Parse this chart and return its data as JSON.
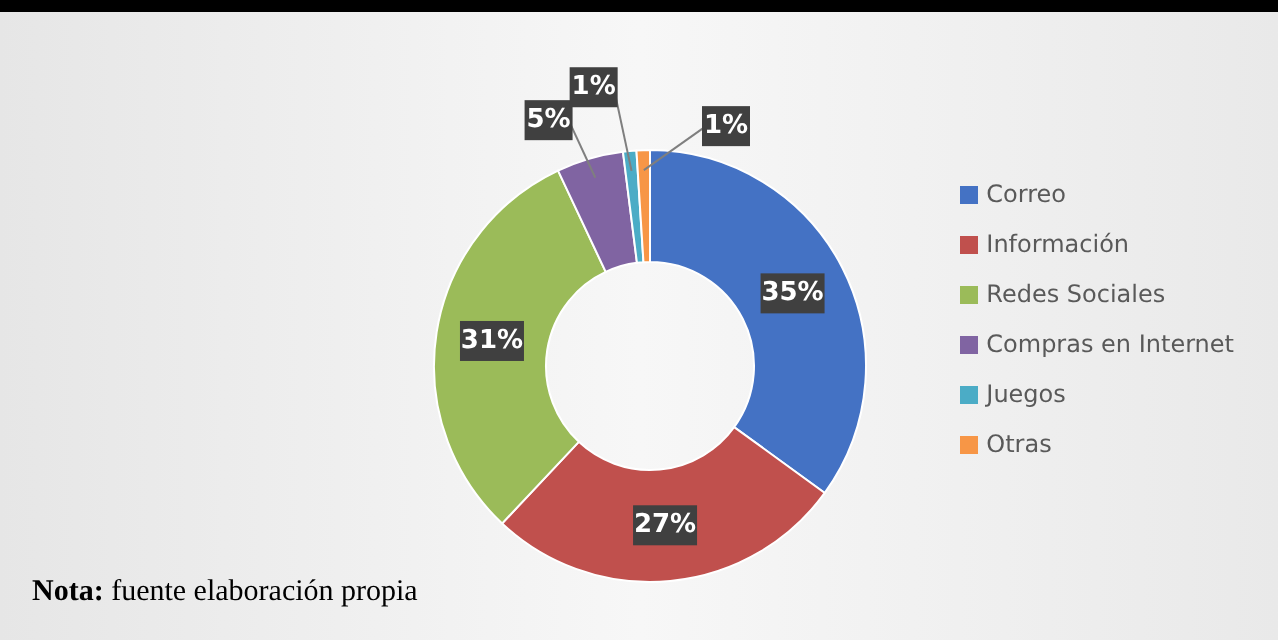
{
  "chart_data": {
    "type": "donut",
    "categories": [
      "Correo",
      "Información",
      "Redes Sociales",
      "Compras en Internet",
      "Juegos",
      "Otras"
    ],
    "values": [
      35,
      27,
      31,
      5,
      1,
      1
    ],
    "colors": [
      "#4472c4",
      "#c0504d",
      "#9bbb59",
      "#8064a2",
      "#4bacc6",
      "#f79646"
    ],
    "value_labels": [
      "35%",
      "27%",
      "31%",
      "5%",
      "1%",
      "1%"
    ],
    "legend": "right",
    "annotations": [
      "Nota: fuente elaboración propia"
    ]
  }
}
